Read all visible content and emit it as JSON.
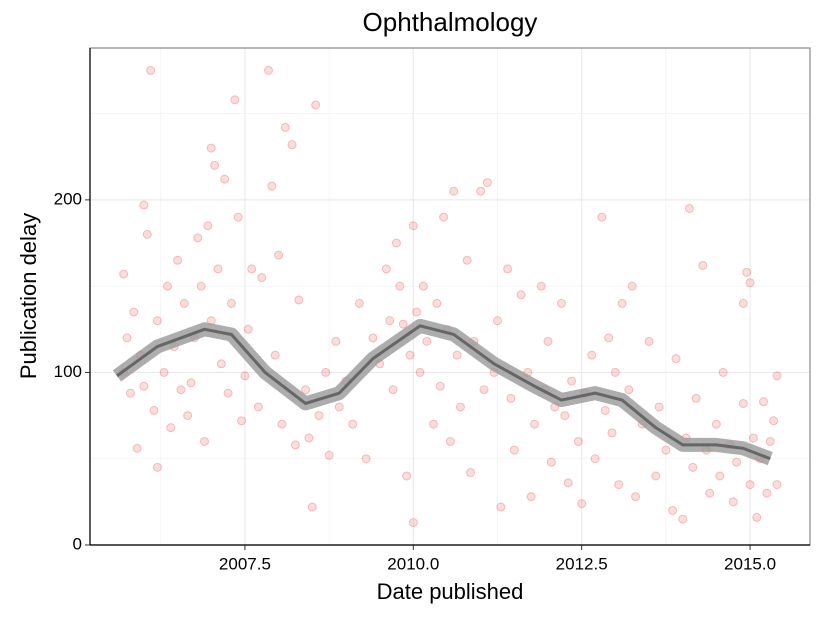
{
  "chart_data": {
    "type": "scatter",
    "title": "Ophthalmology",
    "x_label": "Date published",
    "y_label": "Publication delay",
    "xlim": [
      2005.2,
      2015.89
    ],
    "ylim": [
      0,
      288
    ],
    "xticks": [
      {
        "value": 2007.5,
        "label": "2007.5"
      },
      {
        "value": 2010,
        "label": "2010.0"
      },
      {
        "value": 2012.5,
        "label": "2012.5"
      },
      {
        "value": 2015,
        "label": "2015.0"
      }
    ],
    "yticks": [
      0,
      100,
      200
    ],
    "grid": true,
    "series": [
      {
        "type": "scatter",
        "color": "#e41a1c",
        "x": [
          2005.7,
          2005.7,
          2005.75,
          2005.8,
          2005.85,
          2005.9,
          2005.95,
          2006.0,
          2006.0,
          2006.05,
          2006.1,
          2006.15,
          2006.2,
          2006.2,
          2006.3,
          2006.35,
          2006.4,
          2006.45,
          2006.5,
          2006.55,
          2006.6,
          2006.65,
          2006.7,
          2006.75,
          2006.8,
          2006.85,
          2006.9,
          2006.95,
          2007.0,
          2007.0,
          2007.05,
          2007.1,
          2007.15,
          2007.2,
          2007.25,
          2007.3,
          2007.35,
          2007.4,
          2007.45,
          2007.5,
          2007.55,
          2007.6,
          2007.7,
          2007.75,
          2007.85,
          2007.9,
          2007.95,
          2008.0,
          2008.05,
          2008.1,
          2008.2,
          2008.25,
          2008.3,
          2008.4,
          2008.45,
          2008.5,
          2008.55,
          2008.6,
          2008.7,
          2008.75,
          2008.85,
          2008.9,
          2009.0,
          2009.1,
          2009.2,
          2009.3,
          2009.4,
          2009.5,
          2009.6,
          2009.65,
          2009.7,
          2009.75,
          2009.8,
          2009.85,
          2009.9,
          2009.95,
          2010.0,
          2010.0,
          2010.05,
          2010.1,
          2010.15,
          2010.2,
          2010.3,
          2010.35,
          2010.4,
          2010.45,
          2010.5,
          2010.55,
          2010.6,
          2010.65,
          2010.7,
          2010.8,
          2010.85,
          2010.9,
          2011.0,
          2011.05,
          2011.1,
          2011.2,
          2011.25,
          2011.3,
          2011.4,
          2011.45,
          2011.5,
          2011.6,
          2011.7,
          2011.75,
          2011.8,
          2011.9,
          2011.95,
          2012.0,
          2012.05,
          2012.1,
          2012.2,
          2012.25,
          2012.3,
          2012.35,
          2012.45,
          2012.5,
          2012.55,
          2012.65,
          2012.7,
          2012.8,
          2012.85,
          2012.9,
          2012.95,
          2013.0,
          2013.05,
          2013.1,
          2013.2,
          2013.25,
          2013.3,
          2013.4,
          2013.5,
          2013.6,
          2013.65,
          2013.75,
          2013.85,
          2013.9,
          2014.0,
          2014.05,
          2014.1,
          2014.15,
          2014.2,
          2014.3,
          2014.35,
          2014.4,
          2014.5,
          2014.55,
          2014.6,
          2014.7,
          2014.75,
          2014.8,
          2014.9,
          2014.9,
          2014.95,
          2015.0,
          2015.0,
          2015.05,
          2015.1,
          2015.15,
          2015.2,
          2015.25,
          2015.3,
          2015.35,
          2015.4,
          2015.4
        ],
        "values": [
          100,
          157,
          120,
          88,
          135,
          56,
          110,
          197,
          92,
          180,
          275,
          78,
          45,
          130,
          100,
          150,
          68,
          115,
          165,
          90,
          140,
          75,
          94,
          120,
          178,
          150,
          60,
          185,
          230,
          130,
          220,
          160,
          105,
          212,
          88,
          140,
          258,
          190,
          72,
          98,
          125,
          160,
          80,
          155,
          275,
          208,
          110,
          168,
          70,
          242,
          232,
          58,
          142,
          90,
          62,
          22,
          255,
          75,
          100,
          52,
          118,
          80,
          95,
          70,
          140,
          50,
          120,
          105,
          160,
          130,
          90,
          175,
          150,
          128,
          40,
          110,
          13,
          185,
          135,
          100,
          150,
          118,
          70,
          140,
          92,
          190,
          125,
          60,
          205,
          110,
          80,
          165,
          42,
          118,
          205,
          90,
          210,
          100,
          130,
          22,
          160,
          85,
          55,
          145,
          100,
          28,
          70,
          150,
          90,
          118,
          48,
          80,
          140,
          75,
          36,
          95,
          60,
          24,
          88,
          110,
          50,
          190,
          78,
          120,
          65,
          100,
          35,
          140,
          90,
          150,
          28,
          70,
          118,
          40,
          80,
          55,
          20,
          108,
          15,
          62,
          195,
          45,
          85,
          162,
          55,
          30,
          70,
          40,
          100,
          58,
          25,
          48,
          140,
          82,
          158,
          35,
          152,
          62,
          16,
          50,
          83,
          30,
          60,
          72,
          98,
          35
        ]
      },
      {
        "type": "line",
        "color": "#666666",
        "x": [
          2005.6,
          2006.2,
          2006.9,
          2007.3,
          2007.8,
          2008.4,
          2008.9,
          2009.4,
          2010.1,
          2010.6,
          2011.2,
          2011.8,
          2012.2,
          2012.7,
          2013.1,
          2013.6,
          2014.0,
          2014.5,
          2014.9,
          2015.3
        ],
        "values": [
          98,
          115,
          125,
          122,
          100,
          82,
          88,
          108,
          127,
          122,
          105,
          92,
          84,
          88,
          84,
          68,
          58,
          58,
          56,
          50
        ]
      }
    ]
  }
}
